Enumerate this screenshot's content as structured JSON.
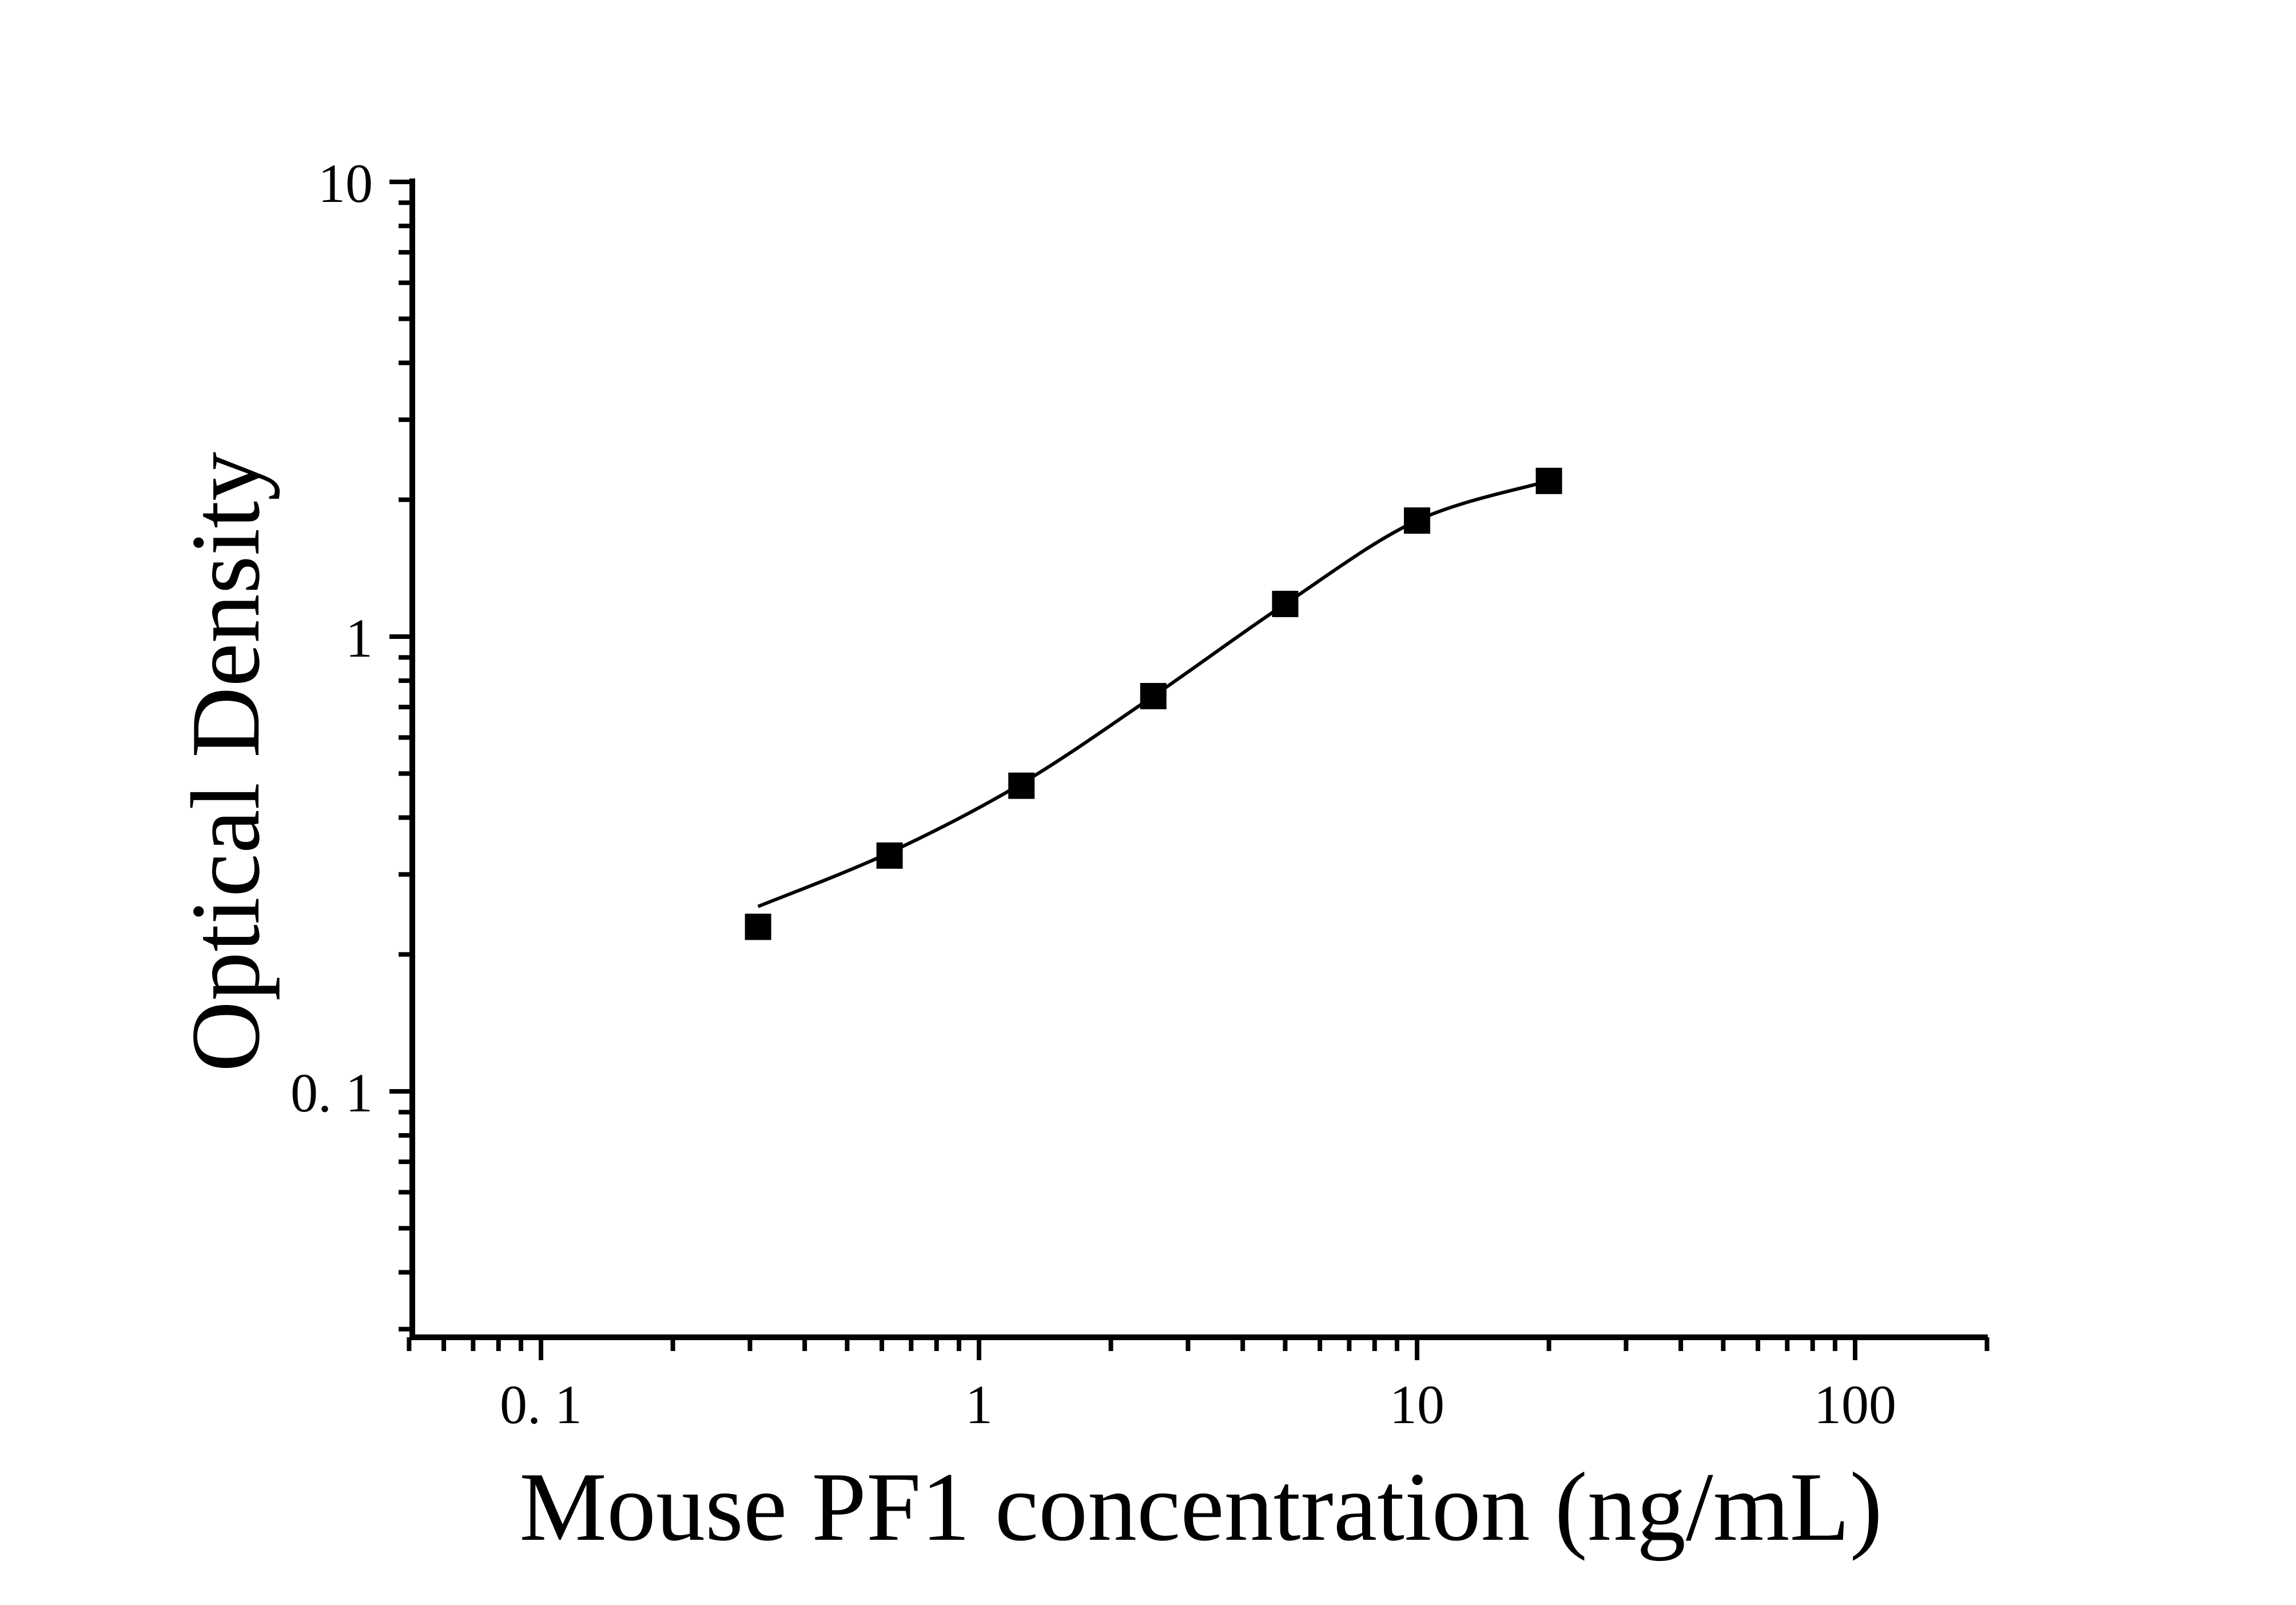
{
  "chart_data": {
    "type": "scatter",
    "title": "",
    "xlabel": "Mouse PF1 concentration (ng/mL)",
    "ylabel": "Optical Density",
    "x_scale": "log",
    "y_scale": "log",
    "xlim": [
      0.05,
      200
    ],
    "ylim": [
      0.029,
      10
    ],
    "grid": false,
    "legend_position": "none",
    "background_color": "#ffffff",
    "axis_color": "#000000",
    "curve_color": "#000000",
    "marker": {
      "shape": "square",
      "color": "#000000"
    },
    "x_major_ticks": [
      {
        "value": 0.1,
        "label": "0. 1"
      },
      {
        "value": 1,
        "label": "1"
      },
      {
        "value": 10,
        "label": "10"
      },
      {
        "value": 100,
        "label": "100"
      }
    ],
    "y_major_ticks": [
      {
        "value": 10,
        "label": "10"
      },
      {
        "value": 1,
        "label": "1"
      },
      {
        "value": 0.1,
        "label": "0. 1"
      }
    ],
    "series": [
      {
        "x_ng_per_mL": [
          0.313,
          0.625,
          1.25,
          2.5,
          5,
          10,
          20
        ],
        "optical_density": [
          0.23,
          0.33,
          0.47,
          0.74,
          1.18,
          1.8,
          2.2
        ]
      }
    ],
    "fit_curve_od": [
      0.255,
      0.335,
      0.475,
      0.74,
      1.18,
      1.8,
      2.2
    ]
  }
}
